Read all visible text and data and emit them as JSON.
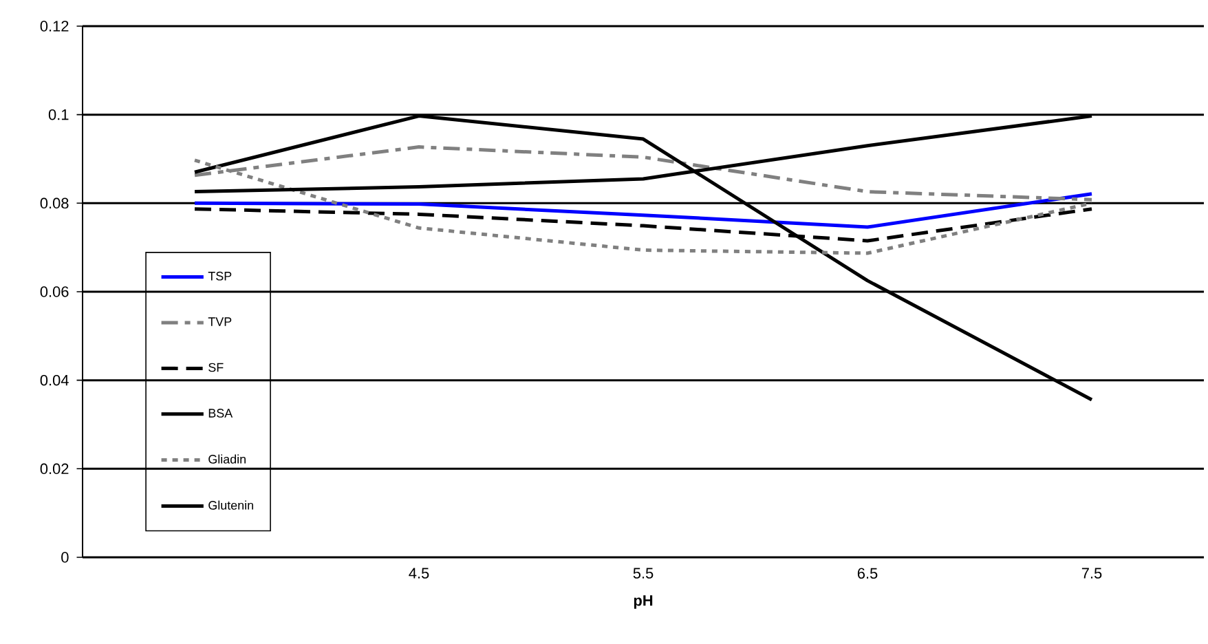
{
  "chart_data": {
    "type": "line",
    "xlabel": "pH",
    "categories": [
      null,
      "4.5",
      "5.5",
      "6.5",
      "7.5"
    ],
    "series": [
      {
        "name": "TSP",
        "color": "#0000ff",
        "line_style": "solid",
        "values": [
          0.08,
          0.0798,
          0.0773,
          0.0746,
          0.0821
        ]
      },
      {
        "name": "TVP",
        "color": "#808080",
        "line_style": "dashdot",
        "values": [
          0.0863,
          0.0927,
          0.0904,
          0.0826,
          0.0808
        ]
      },
      {
        "name": "SF",
        "color": "#000000",
        "line_style": "dashed",
        "values": [
          0.0787,
          0.0775,
          0.0749,
          0.0715,
          0.0787
        ]
      },
      {
        "name": "BSA",
        "color": "#000000",
        "line_style": "solid",
        "values": [
          0.087,
          0.0997,
          0.0945,
          0.0625,
          0.0356
        ]
      },
      {
        "name": "Gliadin",
        "color": "#808080",
        "line_style": "dotted",
        "values": [
          0.0897,
          0.0744,
          0.0694,
          0.0687,
          0.08
        ]
      },
      {
        "name": "Glutenin",
        "color": "#000000",
        "line_style": "solid",
        "values": [
          0.0826,
          0.0837,
          0.0855,
          0.093,
          0.0997
        ]
      }
    ],
    "ylim": [
      0,
      0.12
    ],
    "yticks": [
      0,
      0.02,
      0.04,
      0.06,
      0.08,
      0.1,
      0.12
    ],
    "grid": "y",
    "legend": "bottom left"
  }
}
